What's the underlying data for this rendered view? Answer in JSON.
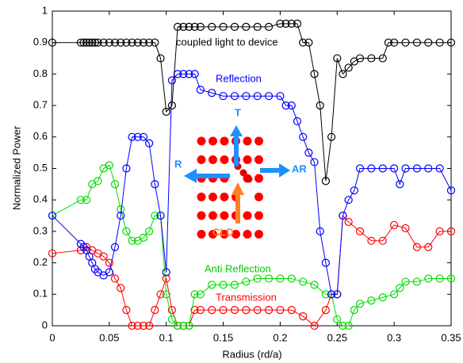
{
  "chart_data": {
    "type": "line",
    "xlabel": "Radius (rd/a)",
    "ylabel": "Normalized Power",
    "xlim": [
      0,
      0.35
    ],
    "ylim": [
      0,
      1
    ],
    "xticks": [
      0,
      0.05,
      0.1,
      0.15,
      0.2,
      0.25,
      0.3,
      0.35
    ],
    "yticks": [
      0,
      0.1,
      0.2,
      0.3,
      0.4,
      0.5,
      0.6,
      0.7,
      0.8,
      0.9,
      1
    ],
    "grid": false,
    "annotations": [
      "coupled light to device",
      "Reflection",
      "Anti Reflection",
      "Transmission",
      "T",
      "R",
      "AR",
      "CLD"
    ],
    "series": [
      {
        "name": "coupled light to device",
        "color": "#000000",
        "x": [
          0,
          0.025,
          0.0275,
          0.03,
          0.0325,
          0.035,
          0.0375,
          0.04,
          0.045,
          0.05,
          0.055,
          0.06,
          0.065,
          0.07,
          0.075,
          0.08,
          0.085,
          0.09,
          0.095,
          0.1,
          0.105,
          0.11,
          0.115,
          0.12,
          0.125,
          0.13,
          0.14,
          0.15,
          0.16,
          0.17,
          0.18,
          0.19,
          0.2,
          0.205,
          0.21,
          0.215,
          0.22,
          0.225,
          0.23,
          0.235,
          0.24,
          0.245,
          0.25,
          0.255,
          0.26,
          0.265,
          0.27,
          0.28,
          0.29,
          0.295,
          0.3,
          0.31,
          0.32,
          0.33,
          0.34,
          0.35
        ],
        "values": [
          0.9,
          0.9,
          0.9,
          0.9,
          0.9,
          0.9,
          0.9,
          0.9,
          0.9,
          0.9,
          0.9,
          0.9,
          0.9,
          0.9,
          0.9,
          0.9,
          0.9,
          0.9,
          0.85,
          0.68,
          0.7,
          0.95,
          0.95,
          0.95,
          0.95,
          0.95,
          0.95,
          0.95,
          0.95,
          0.95,
          0.95,
          0.95,
          0.96,
          0.96,
          0.96,
          0.96,
          0.9,
          0.9,
          0.8,
          0.7,
          0.46,
          0.6,
          0.85,
          0.8,
          0.82,
          0.84,
          0.85,
          0.85,
          0.85,
          0.9,
          0.9,
          0.9,
          0.9,
          0.9,
          0.9,
          0.9
        ]
      },
      {
        "name": "Reflection",
        "color": "#0000ff",
        "x": [
          0,
          0.025,
          0.0275,
          0.03,
          0.0325,
          0.035,
          0.0375,
          0.04,
          0.045,
          0.05,
          0.055,
          0.06,
          0.065,
          0.07,
          0.075,
          0.08,
          0.085,
          0.09,
          0.095,
          0.1,
          0.105,
          0.11,
          0.115,
          0.12,
          0.125,
          0.13,
          0.14,
          0.15,
          0.16,
          0.17,
          0.18,
          0.19,
          0.2,
          0.205,
          0.21,
          0.215,
          0.22,
          0.225,
          0.23,
          0.235,
          0.24,
          0.245,
          0.25,
          0.255,
          0.26,
          0.265,
          0.27,
          0.28,
          0.29,
          0.3,
          0.305,
          0.31,
          0.32,
          0.33,
          0.34,
          0.35
        ],
        "values": [
          0.35,
          0.26,
          0.25,
          0.24,
          0.22,
          0.2,
          0.18,
          0.17,
          0.16,
          0.17,
          0.25,
          0.35,
          0.5,
          0.6,
          0.6,
          0.6,
          0.58,
          0.45,
          0.35,
          0.17,
          0.78,
          0.8,
          0.8,
          0.8,
          0.8,
          0.75,
          0.74,
          0.73,
          0.73,
          0.73,
          0.73,
          0.73,
          0.73,
          0.7,
          0.7,
          0.65,
          0.6,
          0.55,
          0.52,
          0.3,
          0.2,
          0.1,
          0.1,
          0.35,
          0.4,
          0.43,
          0.5,
          0.5,
          0.5,
          0.5,
          0.45,
          0.5,
          0.5,
          0.5,
          0.5,
          0.43
        ]
      },
      {
        "name": "Anti Reflection",
        "color": "#00dd00",
        "x": [
          0,
          0.025,
          0.03,
          0.035,
          0.04,
          0.045,
          0.05,
          0.055,
          0.06,
          0.065,
          0.07,
          0.075,
          0.08,
          0.085,
          0.09,
          0.095,
          0.1,
          0.105,
          0.11,
          0.115,
          0.12,
          0.125,
          0.13,
          0.14,
          0.15,
          0.16,
          0.17,
          0.18,
          0.19,
          0.2,
          0.21,
          0.22,
          0.23,
          0.24,
          0.245,
          0.25,
          0.255,
          0.26,
          0.265,
          0.27,
          0.28,
          0.29,
          0.3,
          0.305,
          0.31,
          0.32,
          0.33,
          0.34,
          0.35
        ],
        "values": [
          0.35,
          0.4,
          0.4,
          0.45,
          0.46,
          0.5,
          0.51,
          0.45,
          0.37,
          0.3,
          0.27,
          0.27,
          0.28,
          0.3,
          0.35,
          0.35,
          0.1,
          0.02,
          0,
          0,
          0,
          0.1,
          0.1,
          0.13,
          0.13,
          0.13,
          0.14,
          0.15,
          0.15,
          0.15,
          0.15,
          0.14,
          0.13,
          0.1,
          0.1,
          0.02,
          0,
          0,
          0.05,
          0.07,
          0.08,
          0.09,
          0.1,
          0.12,
          0.14,
          0.14,
          0.15,
          0.15,
          0.15
        ]
      },
      {
        "name": "Transmission",
        "color": "#ff0000",
        "x": [
          0,
          0.025,
          0.03,
          0.035,
          0.04,
          0.045,
          0.05,
          0.055,
          0.06,
          0.065,
          0.07,
          0.075,
          0.08,
          0.085,
          0.09,
          0.095,
          0.1,
          0.105,
          0.11,
          0.115,
          0.12,
          0.125,
          0.13,
          0.14,
          0.15,
          0.16,
          0.17,
          0.18,
          0.19,
          0.2,
          0.21,
          0.22,
          0.23,
          0.24,
          0.245,
          0.25,
          0.255,
          0.26,
          0.27,
          0.28,
          0.29,
          0.3,
          0.31,
          0.32,
          0.33,
          0.34,
          0.35
        ],
        "values": [
          0.23,
          0.24,
          0.25,
          0.24,
          0.23,
          0.22,
          0.2,
          0.15,
          0.12,
          0.05,
          0,
          0,
          0,
          0,
          0.05,
          0.1,
          0.15,
          0.05,
          0,
          0,
          0,
          0.05,
          0.05,
          0.05,
          0.05,
          0.05,
          0.05,
          0.05,
          0.05,
          0.05,
          0.05,
          0.03,
          0,
          0.05,
          0.1,
          0.1,
          0.35,
          0.33,
          0.3,
          0.27,
          0.27,
          0.32,
          0.31,
          0.25,
          0.25,
          0.3,
          0.3
        ]
      }
    ]
  }
}
